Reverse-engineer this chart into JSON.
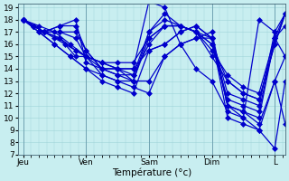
{
  "background_color": "#c8eef0",
  "grid_color": "#9dd4d8",
  "line_color": "#0000cc",
  "marker": "D",
  "markersize": 3,
  "linewidth": 0.9,
  "ylim": [
    7,
    19
  ],
  "yticks": [
    7,
    8,
    9,
    10,
    11,
    12,
    13,
    14,
    15,
    16,
    17,
    18,
    19
  ],
  "xlabel": "Température (°c)",
  "xlabel_fontsize": 7.5,
  "tick_fontsize": 6.5,
  "day_labels": [
    "Jeu",
    "Ven",
    "Sam",
    "Dim",
    "L"
  ],
  "day_positions": [
    0,
    24,
    48,
    72,
    96
  ],
  "xlim": [
    -2,
    100
  ],
  "series": [
    {
      "start_x": 0,
      "points": [
        [
          0,
          18
        ],
        [
          6,
          17.5
        ],
        [
          12,
          17
        ],
        [
          18,
          16
        ],
        [
          24,
          15
        ],
        [
          30,
          14.5
        ],
        [
          36,
          14
        ],
        [
          42,
          14
        ],
        [
          48,
          19.5
        ],
        [
          54,
          19
        ],
        [
          60,
          16
        ],
        [
          66,
          14
        ],
        [
          72,
          13
        ],
        [
          78,
          10.5
        ],
        [
          84,
          10
        ],
        [
          90,
          18
        ],
        [
          96,
          17
        ]
      ]
    },
    {
      "start_x": 0,
      "points": [
        [
          0,
          18
        ],
        [
          4,
          17.5
        ],
        [
          8,
          17
        ],
        [
          12,
          16.5
        ],
        [
          16,
          16
        ],
        [
          20,
          15.5
        ],
        [
          24,
          15
        ],
        [
          30,
          14
        ],
        [
          36,
          14
        ],
        [
          42,
          14
        ],
        [
          48,
          15.5
        ],
        [
          54,
          16
        ],
        [
          60,
          17
        ],
        [
          66,
          17.5
        ],
        [
          72,
          16.5
        ],
        [
          78,
          11
        ],
        [
          84,
          10.5
        ],
        [
          90,
          10
        ],
        [
          96,
          16.5
        ],
        [
          100,
          15
        ]
      ]
    },
    {
      "start_x": 0,
      "points": [
        [
          0,
          18
        ],
        [
          4,
          17.5
        ],
        [
          8,
          17
        ],
        [
          14,
          17.5
        ],
        [
          20,
          18
        ],
        [
          24,
          14.5
        ],
        [
          30,
          14
        ],
        [
          36,
          14
        ],
        [
          42,
          13
        ],
        [
          48,
          13
        ],
        [
          54,
          15
        ],
        [
          60,
          16
        ],
        [
          66,
          16.5
        ],
        [
          72,
          17
        ],
        [
          78,
          11
        ],
        [
          84,
          10
        ],
        [
          90,
          9
        ],
        [
          96,
          7.5
        ],
        [
          100,
          13
        ]
      ]
    },
    {
      "start_x": 0,
      "points": [
        [
          0,
          18
        ],
        [
          4,
          17.5
        ],
        [
          8,
          17
        ],
        [
          14,
          16.5
        ],
        [
          20,
          15.5
        ],
        [
          24,
          15
        ],
        [
          30,
          14.5
        ],
        [
          36,
          14
        ],
        [
          42,
          13.5
        ],
        [
          48,
          16
        ],
        [
          54,
          17.5
        ],
        [
          60,
          17.5
        ],
        [
          66,
          17
        ],
        [
          72,
          16
        ],
        [
          78,
          13
        ],
        [
          84,
          12
        ],
        [
          90,
          11.5
        ],
        [
          96,
          16
        ],
        [
          100,
          18.5
        ]
      ]
    },
    {
      "start_x": 0,
      "points": [
        [
          0,
          18
        ],
        [
          4,
          17.5
        ],
        [
          8,
          17
        ],
        [
          14,
          17
        ],
        [
          20,
          17
        ],
        [
          24,
          15.5
        ],
        [
          30,
          14
        ],
        [
          36,
          13.5
        ],
        [
          42,
          13
        ],
        [
          48,
          17
        ],
        [
          54,
          18
        ],
        [
          60,
          17.5
        ],
        [
          66,
          17
        ],
        [
          72,
          16.5
        ],
        [
          78,
          12
        ],
        [
          84,
          11.5
        ],
        [
          90,
          11
        ],
        [
          96,
          17
        ],
        [
          100,
          18.5
        ]
      ]
    },
    {
      "start_x": 0,
      "points": [
        [
          0,
          18
        ],
        [
          4,
          17.5
        ],
        [
          8,
          17
        ],
        [
          14,
          16.5
        ],
        [
          20,
          15
        ],
        [
          24,
          15
        ],
        [
          30,
          14.5
        ],
        [
          36,
          14.5
        ],
        [
          42,
          14.5
        ],
        [
          48,
          16.5
        ],
        [
          54,
          17.5
        ],
        [
          60,
          17.5
        ],
        [
          66,
          17
        ],
        [
          72,
          16
        ],
        [
          78,
          11.5
        ],
        [
          84,
          11
        ],
        [
          90,
          10.5
        ],
        [
          96,
          16.5
        ],
        [
          100,
          17.5
        ]
      ]
    },
    {
      "start_x": 0,
      "points": [
        [
          0,
          18
        ],
        [
          4,
          17.5
        ],
        [
          8,
          17
        ],
        [
          14,
          17
        ],
        [
          20,
          16.5
        ],
        [
          24,
          15
        ],
        [
          30,
          13.5
        ],
        [
          36,
          13
        ],
        [
          42,
          13
        ],
        [
          48,
          16.5
        ],
        [
          54,
          17.5
        ],
        [
          60,
          17.5
        ],
        [
          66,
          17
        ],
        [
          72,
          15
        ],
        [
          78,
          13
        ],
        [
          84,
          12
        ],
        [
          90,
          11.5
        ],
        [
          96,
          16
        ],
        [
          100,
          18.5
        ]
      ]
    },
    {
      "start_x": 0,
      "points": [
        [
          0,
          18
        ],
        [
          4,
          17.5
        ],
        [
          8,
          17
        ],
        [
          14,
          17.5
        ],
        [
          20,
          17.5
        ],
        [
          24,
          15.5
        ],
        [
          30,
          14
        ],
        [
          36,
          13.5
        ],
        [
          42,
          13.5
        ],
        [
          48,
          17
        ],
        [
          54,
          18.5
        ],
        [
          60,
          17.5
        ],
        [
          66,
          17
        ],
        [
          72,
          15.5
        ],
        [
          78,
          13.5
        ],
        [
          84,
          12.5
        ],
        [
          90,
          12
        ],
        [
          96,
          16.5
        ],
        [
          100,
          18.5
        ]
      ]
    },
    {
      "start_x": 0,
      "points": [
        [
          0,
          18
        ],
        [
          6,
          17
        ],
        [
          12,
          16
        ],
        [
          18,
          15
        ],
        [
          24,
          14
        ],
        [
          30,
          13.5
        ],
        [
          36,
          13
        ],
        [
          42,
          12.5
        ],
        [
          48,
          12
        ],
        [
          54,
          15
        ],
        [
          60,
          16
        ],
        [
          66,
          16.5
        ],
        [
          72,
          16.5
        ],
        [
          78,
          10
        ],
        [
          84,
          9.5
        ],
        [
          90,
          9
        ],
        [
          96,
          13
        ],
        [
          100,
          15
        ]
      ]
    },
    {
      "start_x": 0,
      "points": [
        [
          0,
          18
        ],
        [
          6,
          17
        ],
        [
          12,
          16
        ],
        [
          18,
          15
        ],
        [
          24,
          14
        ],
        [
          30,
          13
        ],
        [
          36,
          12.5
        ],
        [
          42,
          12
        ],
        [
          48,
          15.5
        ],
        [
          54,
          16
        ],
        [
          60,
          17
        ],
        [
          66,
          17.5
        ],
        [
          72,
          16.5
        ],
        [
          78,
          11
        ],
        [
          84,
          10.5
        ],
        [
          90,
          9.5
        ],
        [
          96,
          13
        ],
        [
          100,
          9.5
        ]
      ]
    }
  ]
}
